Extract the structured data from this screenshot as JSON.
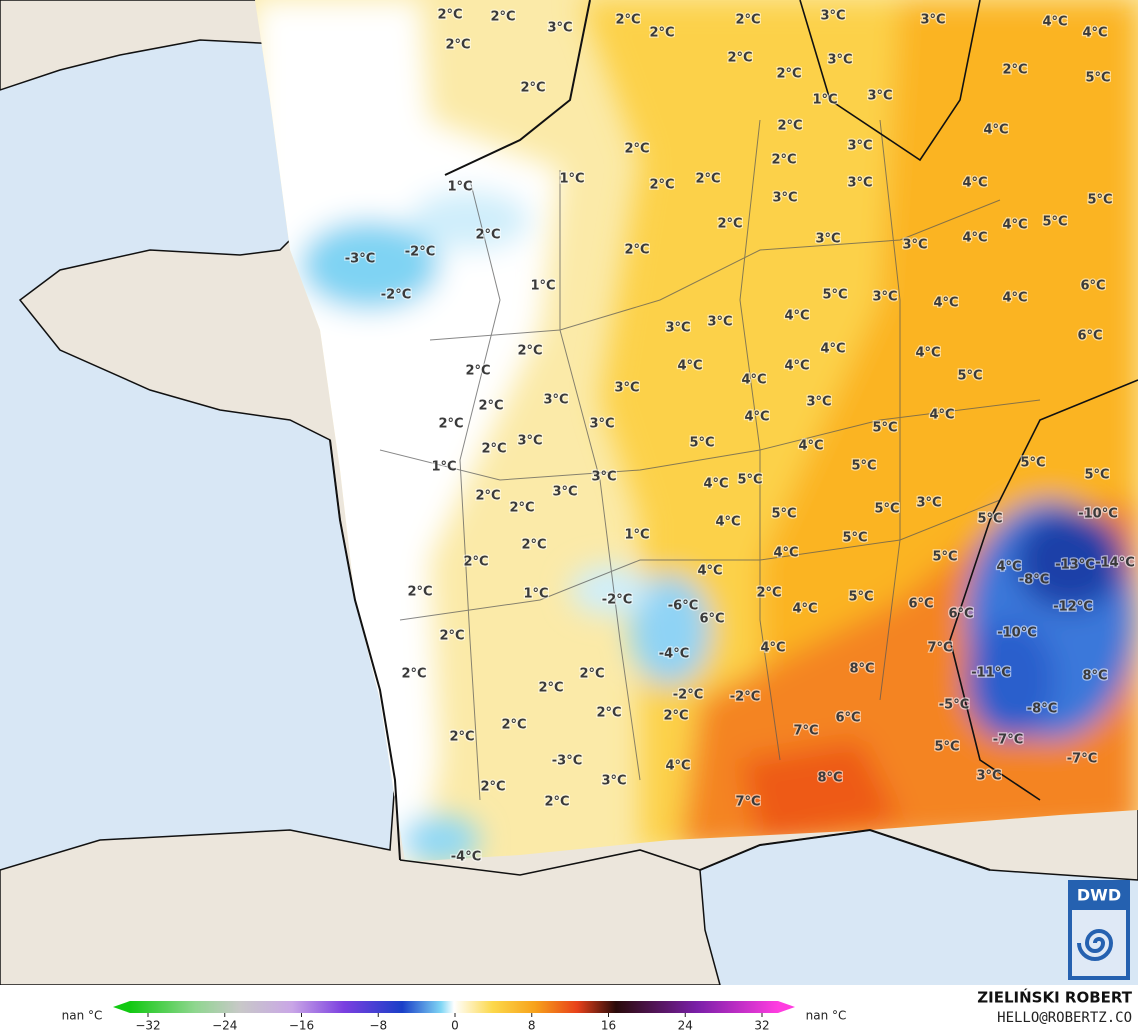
{
  "map": {
    "labels": [
      "2°C",
      "2°C",
      "3°C",
      "2°C",
      "2°C",
      "3°C",
      "3°C",
      "4°C",
      "4°C",
      "2°C",
      "2°C",
      "2°C",
      "2°C",
      "3°C",
      "2°C",
      "5°C",
      "2°C",
      "1°C",
      "3°C",
      "2°C",
      "4°C",
      "2°C",
      "2°C",
      "3°C",
      "1°C",
      "1°C",
      "2°C",
      "2°C",
      "3°C",
      "3°C",
      "4°C",
      "5°C",
      "2°C",
      "2°C",
      "4°C",
      "5°C",
      "-3°C",
      "-2°C",
      "2°C",
      "3°C",
      "3°C",
      "4°C",
      "-2°C",
      "1°C",
      "5°C",
      "3°C",
      "4°C",
      "4°C",
      "6°C",
      "3°C",
      "3°C",
      "4°C",
      "6°C",
      "2°C",
      "4°C",
      "4°C",
      "4°C",
      "4°C",
      "4°C",
      "2°C",
      "5°C",
      "3°C",
      "3°C",
      "2°C",
      "3°C",
      "4°C",
      "3°C",
      "2°C",
      "5°C",
      "4°C",
      "2°C",
      "3°C",
      "5°C",
      "4°C",
      "1°C",
      "5°C",
      "5°C",
      "5°C",
      "3°C",
      "3°C",
      "2°C",
      "4°C",
      "5°C",
      "2°C",
      "5°C",
      "3°C",
      "5°C",
      "5°C",
      "-10°C",
      "4°C",
      "1°C",
      "5°C",
      "2°C",
      "4°C",
      "5°C",
      "2°C",
      "4°C",
      "4°C",
      "-13°C",
      "-14°C",
      "-8°C",
      "2°C",
      "1°C",
      "2°C",
      "5°C",
      "6°C",
      "-2°C",
      "-6°C",
      "4°C",
      "6°C",
      "-12°C",
      "6°C",
      "2°C",
      "-10°C",
      "-4°C",
      "4°C",
      "7°C",
      "8°C",
      "2°C",
      "-11°C",
      "8°C",
      "2°C",
      "2°C",
      "-2°C",
      "-2°C",
      "-5°C",
      "2°C",
      "2°C",
      "2°C",
      "-8°C",
      "7°C",
      "6°C",
      "2°C",
      "5°C",
      "-7°C",
      "-3°C",
      "4°C",
      "-7°C",
      "3°C",
      "8°C",
      "3°C",
      "2°C",
      "2°C",
      "7°C",
      "-4°C"
    ]
  },
  "colorbar": {
    "lim": [
      -32,
      32
    ],
    "ticks": [
      {
        "value": -32,
        "label": "−32"
      },
      {
        "value": -24,
        "label": "−24"
      },
      {
        "value": -16,
        "label": "−16"
      },
      {
        "value": -8,
        "label": "−8"
      },
      0,
      8,
      16,
      24,
      32
    ],
    "left_label": "nan °C",
    "right_label": "nan °C"
  },
  "credits": {
    "author": "ZIELIŃSKI ROBERT",
    "contact": "HELLO@ROBERTZ.CO",
    "logo": "DWD"
  }
}
